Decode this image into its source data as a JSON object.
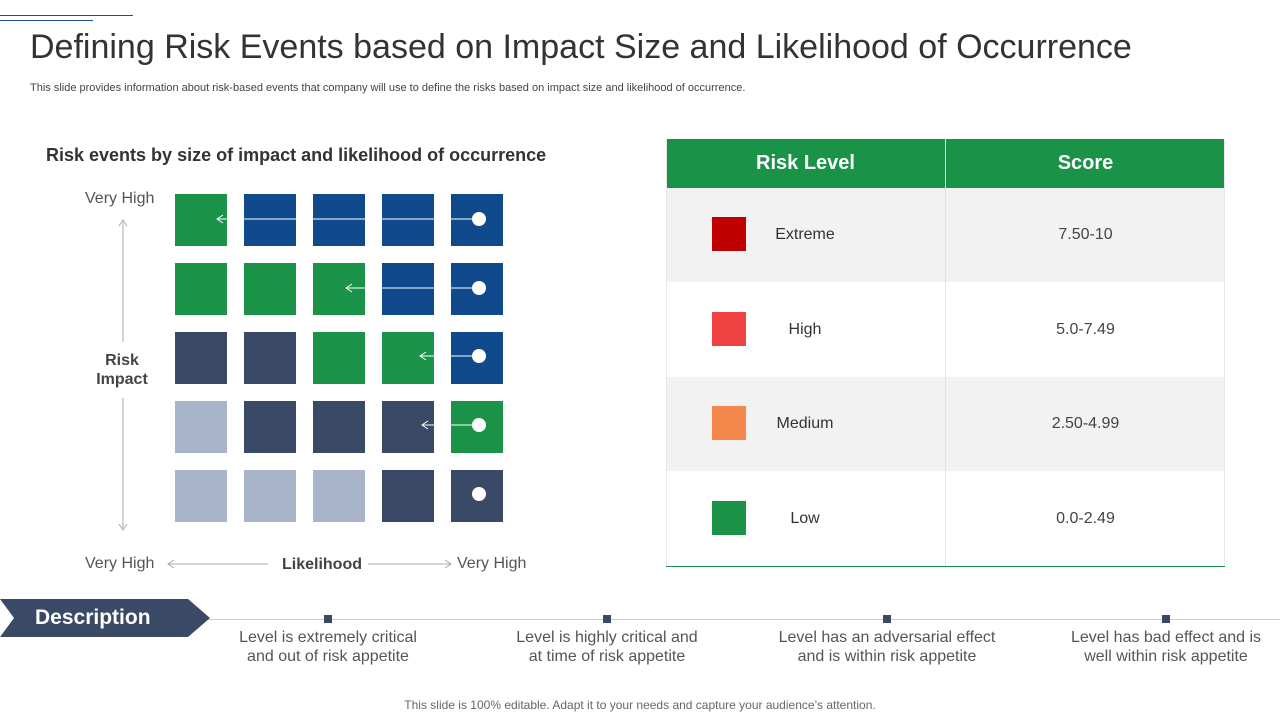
{
  "title": "Defining Risk Events based on Impact Size and Likelihood of Occurrence",
  "subtitle": "This slide provides information about risk-based events that company will use to define the risks based on impact size and likelihood of occurrence.",
  "matrix": {
    "title": "Risk events by size of impact and likelihood of occurrence",
    "y_top_label": "Very High",
    "y_axis_label_line1": "Risk",
    "y_axis_label_line2": "Impact",
    "x_left_label": "Very High",
    "x_axis_label": "Likelihood",
    "x_right_label": "Very High",
    "colors": {
      "green": "#1a9348",
      "dark_blue": "#114a8c",
      "slate": "#3a4a66",
      "light": "#a8b4c9"
    },
    "grid": [
      [
        "green",
        "dark_blue",
        "dark_blue",
        "dark_blue",
        "dark_blue"
      ],
      [
        "green",
        "green",
        "green",
        "dark_blue",
        "dark_blue"
      ],
      [
        "slate",
        "slate",
        "green",
        "green",
        "dark_blue"
      ],
      [
        "light",
        "slate",
        "slate",
        "slate",
        "green"
      ],
      [
        "light",
        "light",
        "light",
        "slate",
        "slate"
      ]
    ]
  },
  "table": {
    "headers": [
      "Risk Level",
      "Score"
    ],
    "rows": [
      {
        "level": "Extreme",
        "score": "7.50-10",
        "color": "#c00000"
      },
      {
        "level": "High",
        "score": "5.0-7.49",
        "color": "#f04141"
      },
      {
        "level": "Medium",
        "score": "2.50-4.99",
        "color": "#f5894b"
      },
      {
        "level": "Low",
        "score": "0.0-2.49",
        "color": "#1a9348"
      }
    ]
  },
  "description": {
    "label": "Description",
    "items": [
      {
        "line1": "Level is extremely  critical",
        "line2": "and out of risk appetite"
      },
      {
        "line1": "Level is highly critical and",
        "line2": "at time of risk appetite"
      },
      {
        "line1": "Level has an adversarial effect",
        "line2": "and is within risk appetite"
      },
      {
        "line1": "Level has bad effect and is",
        "line2": "well within risk appetite"
      }
    ]
  },
  "footer": "This slide is 100% editable. Adapt it to your needs and capture your audience’s attention."
}
